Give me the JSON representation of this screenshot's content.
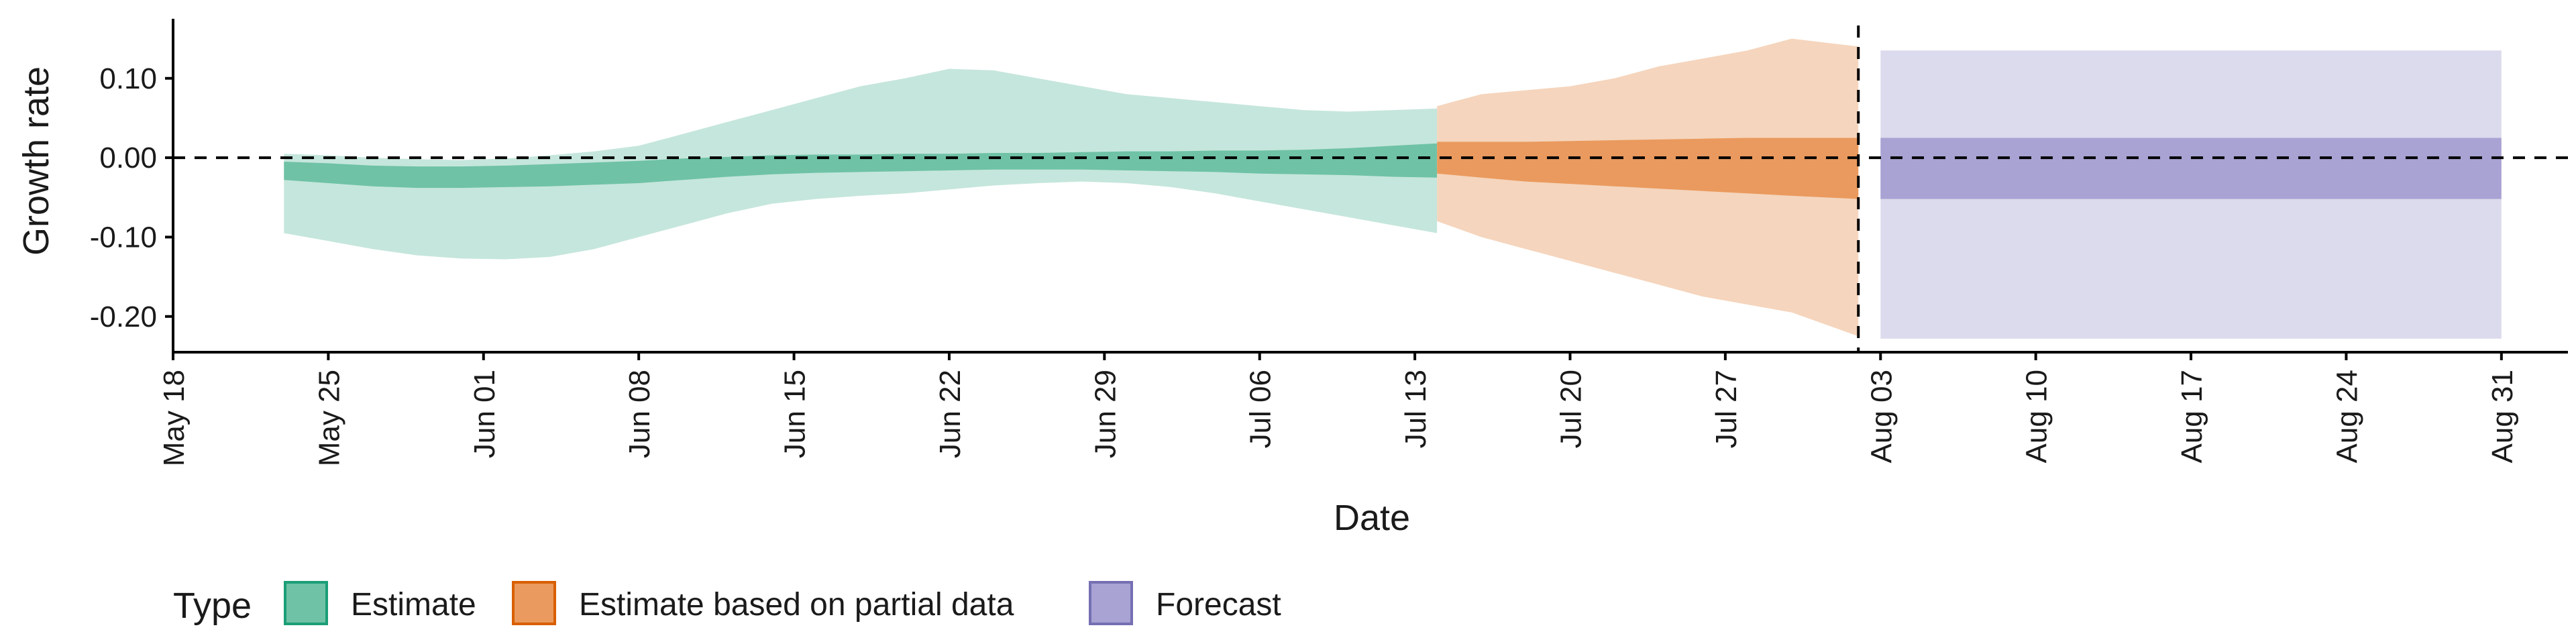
{
  "chart_data": {
    "type": "area",
    "xlabel": "Date",
    "ylabel": "Growth rate",
    "xlim": [
      "2021-05-18",
      "2021-09-03"
    ],
    "ylim": [
      -0.245,
      0.175
    ],
    "x_ticks": [
      "2021-05-18",
      "2021-05-25",
      "2021-06-01",
      "2021-06-08",
      "2021-06-15",
      "2021-06-22",
      "2021-06-29",
      "2021-07-06",
      "2021-07-13",
      "2021-07-20",
      "2021-07-27",
      "2021-08-03",
      "2021-08-10",
      "2021-08-17",
      "2021-08-24",
      "2021-08-31"
    ],
    "x_tick_labels": [
      "May 18",
      "May 25",
      "Jun 01",
      "Jun 08",
      "Jun 15",
      "Jun 22",
      "Jun 29",
      "Jul 06",
      "Jul 13",
      "Jul 20",
      "Jul 27",
      "Aug 03",
      "Aug 10",
      "Aug 17",
      "Aug 24",
      "Aug 31"
    ],
    "y_ticks": [
      0.1,
      0.0,
      -0.1,
      -0.2
    ],
    "y_tick_labels": [
      "0.10",
      "0.00",
      "-0.10",
      "-0.20"
    ],
    "reference_lines": {
      "horizontal_y": 0.0,
      "vertical_date": "2021-08-02"
    },
    "legend": {
      "title": "Type",
      "position": "bottom-left",
      "items": [
        {
          "label": "Estimate",
          "fill": "#6fc2a6",
          "border": "#1b9e77"
        },
        {
          "label": "Estimate based on partial data",
          "fill": "#ea9a5e",
          "border": "#d95f02"
        },
        {
          "label": "Forecast",
          "fill": "#a8a3d3",
          "border": "#7570b3"
        }
      ]
    },
    "series": [
      {
        "name": "Estimate",
        "outer_color": "#c5e6dc",
        "inner_color": "#6fc2a6",
        "x": [
          "2021-05-23",
          "2021-05-25",
          "2021-05-27",
          "2021-05-29",
          "2021-05-31",
          "2021-06-02",
          "2021-06-04",
          "2021-06-06",
          "2021-06-08",
          "2021-06-10",
          "2021-06-12",
          "2021-06-14",
          "2021-06-16",
          "2021-06-18",
          "2021-06-20",
          "2021-06-22",
          "2021-06-24",
          "2021-06-26",
          "2021-06-28",
          "2021-06-30",
          "2021-07-02",
          "2021-07-04",
          "2021-07-06",
          "2021-07-08",
          "2021-07-10",
          "2021-07-12",
          "2021-07-14"
        ],
        "outer_upper": [
          0.005,
          0.003,
          0.0,
          -0.002,
          -0.003,
          -0.001,
          0.003,
          0.008,
          0.015,
          0.03,
          0.045,
          0.06,
          0.075,
          0.09,
          0.1,
          0.112,
          0.11,
          0.1,
          0.09,
          0.08,
          0.075,
          0.07,
          0.065,
          0.06,
          0.058,
          0.06,
          0.062
        ],
        "outer_lower": [
          -0.095,
          -0.105,
          -0.115,
          -0.123,
          -0.127,
          -0.128,
          -0.125,
          -0.115,
          -0.1,
          -0.085,
          -0.07,
          -0.058,
          -0.052,
          -0.048,
          -0.045,
          -0.04,
          -0.035,
          -0.032,
          -0.03,
          -0.032,
          -0.037,
          -0.045,
          -0.055,
          -0.065,
          -0.075,
          -0.085,
          -0.095
        ],
        "inner_upper": [
          -0.005,
          -0.007,
          -0.01,
          -0.011,
          -0.011,
          -0.01,
          -0.008,
          -0.006,
          -0.004,
          -0.001,
          0.001,
          0.003,
          0.004,
          0.004,
          0.005,
          0.005,
          0.006,
          0.006,
          0.007,
          0.008,
          0.008,
          0.009,
          0.009,
          0.01,
          0.012,
          0.015,
          0.018
        ],
        "inner_lower": [
          -0.028,
          -0.032,
          -0.036,
          -0.038,
          -0.038,
          -0.037,
          -0.036,
          -0.034,
          -0.032,
          -0.028,
          -0.024,
          -0.021,
          -0.019,
          -0.018,
          -0.017,
          -0.016,
          -0.015,
          -0.015,
          -0.015,
          -0.016,
          -0.017,
          -0.018,
          -0.02,
          -0.021,
          -0.022,
          -0.024,
          -0.025
        ]
      },
      {
        "name": "Estimate based on partial data",
        "outer_color": "#f5d5bd",
        "inner_color": "#ea9a5e",
        "x": [
          "2021-07-14",
          "2021-07-16",
          "2021-07-18",
          "2021-07-20",
          "2021-07-22",
          "2021-07-24",
          "2021-07-26",
          "2021-07-28",
          "2021-07-30",
          "2021-08-02"
        ],
        "outer_upper": [
          0.065,
          0.08,
          0.085,
          0.09,
          0.1,
          0.115,
          0.125,
          0.135,
          0.15,
          0.14
        ],
        "outer_lower": [
          -0.08,
          -0.1,
          -0.115,
          -0.13,
          -0.145,
          -0.16,
          -0.175,
          -0.185,
          -0.195,
          -0.225
        ],
        "inner_upper": [
          0.02,
          0.02,
          0.02,
          0.021,
          0.022,
          0.023,
          0.024,
          0.025,
          0.025,
          0.025
        ],
        "inner_lower": [
          -0.02,
          -0.025,
          -0.03,
          -0.033,
          -0.036,
          -0.039,
          -0.042,
          -0.045,
          -0.048,
          -0.052
        ]
      },
      {
        "name": "Forecast",
        "outer_color": "#dcdbed",
        "inner_color": "#a8a3d3",
        "x": [
          "2021-08-03",
          "2021-08-31"
        ],
        "outer_upper": [
          0.135,
          0.135
        ],
        "outer_lower": [
          -0.228,
          -0.228
        ],
        "inner_upper": [
          0.025,
          0.025
        ],
        "inner_lower": [
          -0.052,
          -0.052
        ]
      }
    ]
  }
}
